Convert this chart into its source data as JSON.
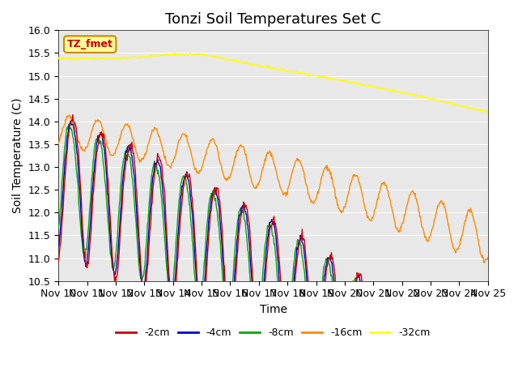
{
  "title": "Tonzi Soil Temperatures Set C",
  "xlabel": "Time",
  "ylabel": "Soil Temperature (C)",
  "ylim": [
    10.5,
    16.0
  ],
  "yticks": [
    10.5,
    11.0,
    11.5,
    12.0,
    12.5,
    13.0,
    13.5,
    14.0,
    14.5,
    15.0,
    15.5,
    16.0
  ],
  "xtick_labels": [
    "Nov 10",
    "Nov 11",
    "Nov 12",
    "Nov 13",
    "Nov 14",
    "Nov 15",
    "Nov 16",
    "Nov 17",
    "Nov 18",
    "Nov 19",
    "Nov 20",
    "Nov 21",
    "Nov 22",
    "Nov 23",
    "Nov 24",
    "Nov 25"
  ],
  "colors": {
    "-2cm": "#cc0000",
    "-4cm": "#0000cc",
    "-8cm": "#00aa00",
    "-16cm": "#ff8800",
    "-32cm": "#ffff00"
  },
  "legend_labels": [
    "-2cm",
    "-4cm",
    "-8cm",
    "-16cm",
    "-32cm"
  ],
  "annotation_text": "TZ_fmet",
  "annotation_bg": "#ffff99",
  "annotation_border": "#cc8800",
  "plot_bg_color": "#e8e8e8",
  "n_points": 720,
  "title_fontsize": 13,
  "label_fontsize": 10,
  "tick_fontsize": 9
}
